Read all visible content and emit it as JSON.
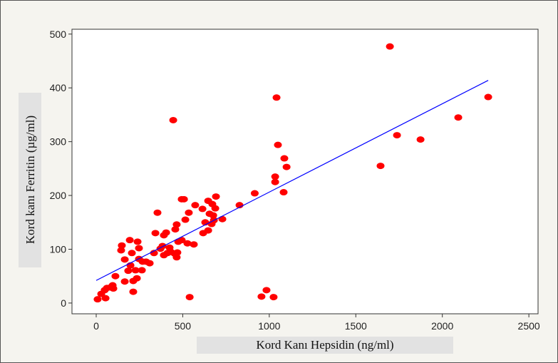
{
  "chart_data": {
    "type": "scatter",
    "x_label": "Kord Kanı Hepsidin (ng/ml)",
    "y_label": "Kord kanı Ferritin (µg/ml)",
    "xlim": [
      -140,
      2553
    ],
    "ylim": [
      -20,
      509
    ],
    "xticks": [
      0,
      500,
      1000,
      1500,
      2000,
      2500
    ],
    "yticks": [
      0,
      100,
      200,
      300,
      400,
      500
    ],
    "series": [
      {
        "name": "Kord Kanı",
        "color": "#ff0000",
        "x": [
          8,
          29,
          49,
          54,
          62,
          82,
          95,
          99,
          111,
          144,
          148,
          165,
          165,
          185,
          194,
          198,
          206,
          214,
          214,
          227,
          235,
          239,
          247,
          247,
          264,
          268,
          288,
          309,
          334,
          342,
          354,
          371,
          383,
          391,
          391,
          404,
          412,
          424,
          432,
          445,
          453,
          457,
          465,
          465,
          469,
          474,
          494,
          494,
          507,
          515,
          527,
          535,
          540,
          564,
          572,
          614,
          618,
          630,
          647,
          647,
          655,
          667,
          671,
          676,
          680,
          688,
          692,
          729,
          828,
          916,
          955,
          984,
          1025,
          1034,
          1034,
          1042,
          1050,
          1083,
          1087,
          1100,
          1643,
          1697,
          1738,
          1874,
          2092,
          2265
        ],
        "values": [
          7,
          17,
          24,
          9,
          28,
          29,
          33,
          27,
          50,
          98,
          107,
          81,
          40,
          60,
          117,
          70,
          93,
          41,
          21,
          61,
          46,
          114,
          82,
          102,
          61,
          77,
          77,
          74,
          93,
          130,
          168,
          101,
          106,
          89,
          126,
          131,
          93,
          103,
          95,
          340,
          92,
          137,
          146,
          85,
          94,
          114,
          193,
          117,
          193,
          155,
          111,
          168,
          11,
          109,
          182,
          175,
          130,
          150,
          190,
          135,
          166,
          147,
          184,
          163,
          154,
          176,
          198,
          156,
          182,
          204,
          12,
          24,
          11,
          225,
          235,
          382,
          294,
          206,
          269,
          253,
          255,
          477,
          312,
          304,
          345,
          383
        ]
      },
      {
        "name": "Fit",
        "type": "line",
        "color": "#0000ff",
        "x": [
          0,
          2265
        ],
        "values": [
          42,
          414
        ]
      }
    ]
  }
}
